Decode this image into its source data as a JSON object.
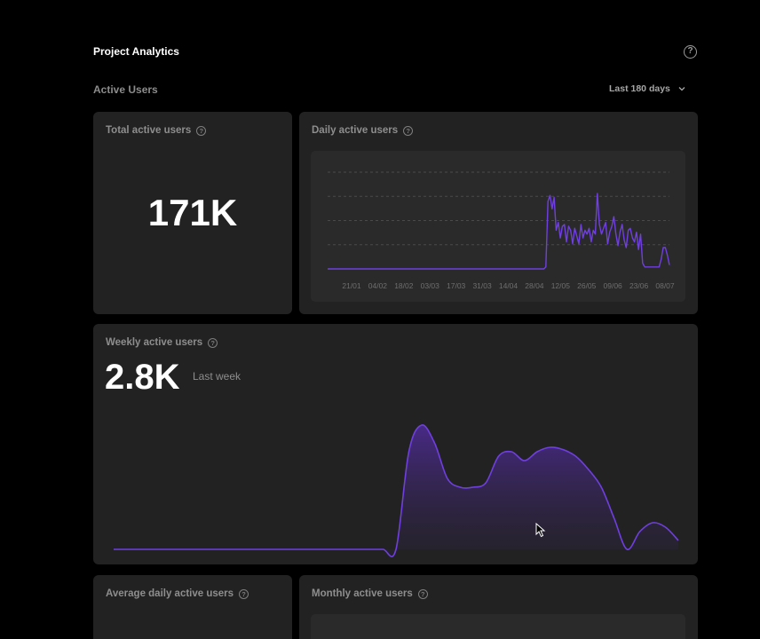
{
  "header": {
    "title": "Project Analytics",
    "help_icon": "question-circle-icon"
  },
  "section": {
    "title": "Active Users",
    "range_label": "Last 180 days",
    "range_icon": "chevron-down-icon"
  },
  "accent": "#6f3fe0",
  "total_card": {
    "title": "Total active users",
    "value": "171K"
  },
  "daily_card": {
    "title": "Daily active users",
    "chart_data": {
      "type": "line",
      "x_ticks": [
        "21/01",
        "04/02",
        "18/02",
        "03/03",
        "17/03",
        "31/03",
        "14/04",
        "28/04",
        "12/05",
        "26/05",
        "09/06",
        "23/06",
        "08/07"
      ],
      "x_start": "13/01",
      "x_end": "12/07",
      "y_range": [
        0,
        5
      ],
      "grid": "horizontal dashed",
      "values": [
        0,
        0,
        0,
        0,
        0,
        0,
        0,
        0,
        0,
        0,
        0,
        0,
        0,
        0,
        0,
        0,
        0,
        0,
        0,
        0,
        0,
        0,
        0,
        0,
        0,
        0,
        0,
        0,
        0,
        0,
        0,
        0,
        0,
        0,
        0,
        0,
        0,
        0,
        0,
        0,
        0,
        0,
        0,
        0,
        0,
        0,
        0,
        0,
        0,
        0,
        0,
        0,
        0,
        0,
        0,
        0,
        0,
        0,
        0,
        0,
        0,
        0,
        0,
        0,
        0,
        0,
        0,
        0,
        0,
        0,
        0,
        0,
        0,
        0,
        0,
        0,
        0,
        0,
        0,
        0,
        0,
        0,
        0,
        0,
        0,
        0,
        0,
        0,
        0,
        0,
        0,
        0,
        0,
        0,
        0,
        0,
        0,
        0,
        0,
        0,
        0,
        0,
        0,
        0,
        0,
        0,
        0.1,
        3.5,
        3.8,
        3.1,
        3.7,
        2.0,
        2.4,
        1.6,
        2.2,
        2.3,
        1.4,
        2.2,
        2.0,
        1.3,
        2.1,
        1.7,
        1.3,
        2.3,
        1.6,
        2.0,
        1.8,
        2.1,
        1.4,
        2.0,
        1.8,
        3.9,
        2.3,
        1.8,
        2.1,
        2.4,
        1.3,
        1.9,
        2.2,
        2.7,
        1.8,
        1.2,
        1.9,
        2.3,
        1.5,
        1.1,
        2.0,
        2.1,
        1.6,
        1.4,
        1.9,
        1.0,
        1.8,
        0.3,
        0.1,
        0.1,
        0.1,
        0.1,
        0.1,
        0.1,
        0.1,
        0.1,
        0.5,
        1.1,
        1.1,
        0.7,
        0.2
      ]
    }
  },
  "weekly_card": {
    "title": "Weekly active users",
    "value": "2.8K",
    "value_caption": "Last week",
    "chart_data": {
      "type": "area",
      "values": [
        0,
        0,
        0,
        0,
        0,
        0,
        0,
        0,
        0,
        0,
        0,
        0,
        0,
        0,
        0,
        0,
        0,
        0,
        0,
        0,
        0,
        0,
        0,
        2.2,
        2.8,
        2.4,
        1.6,
        1.4,
        1.4,
        1.5,
        2.1,
        2.2,
        2.0,
        2.2,
        2.3,
        2.25,
        2.1,
        1.8,
        1.4,
        0.7,
        0.0,
        0.4,
        0.6,
        0.5,
        0.2
      ]
    }
  },
  "avg_card": {
    "title": "Average daily active users"
  },
  "monthly_card": {
    "title": "Monthly active users"
  }
}
